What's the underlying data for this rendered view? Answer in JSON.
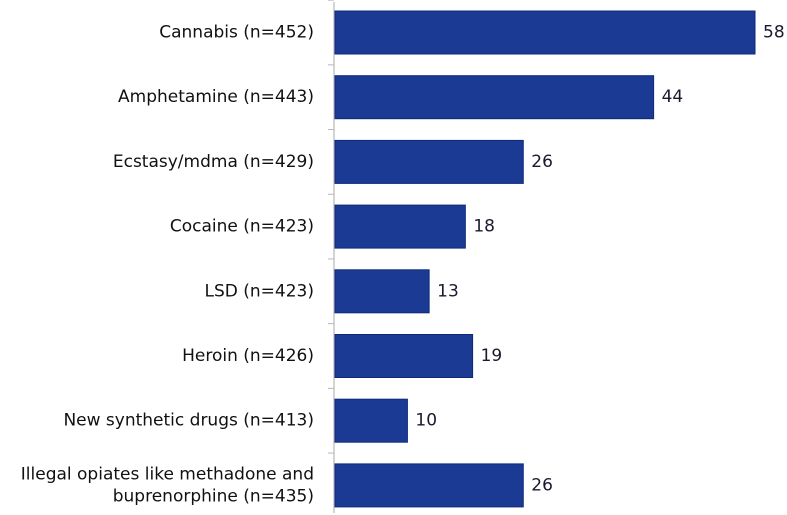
{
  "chart_data": {
    "type": "bar",
    "orientation": "horizontal",
    "categories": [
      "Cannabis (n=452)",
      "Amphetamine (n=443)",
      "Ecstasy/mdma (n=429)",
      "Cocaine (n=423)",
      "LSD (n=423)",
      "Heroin (n=426)",
      "New synthetic drugs (n=413)",
      "Illegal opiates like methadone and buprenorphine (n=435)"
    ],
    "category_lines": [
      [
        "Cannabis (n=452)"
      ],
      [
        "Amphetamine (n=443)"
      ],
      [
        "Ecstasy/mdma (n=429)"
      ],
      [
        "Cocaine (n=423)"
      ],
      [
        "LSD (n=423)"
      ],
      [
        "Heroin (n=426)"
      ],
      [
        "New synthetic drugs (n=413)"
      ],
      [
        "Illegal opiates like methadone and",
        "buprenorphine (n=435)"
      ]
    ],
    "values": [
      58,
      44,
      26,
      18,
      13,
      19,
      10,
      26
    ],
    "data_labels": [
      "58",
      "44",
      "26",
      "18",
      "13",
      "19",
      "10",
      "26"
    ],
    "xlim": [
      0,
      58
    ],
    "grid": false,
    "legend": "none",
    "colors": {
      "bar": "#1b3a94",
      "bar_edge": "#102a7a",
      "axis": "#b8b8b8"
    }
  }
}
